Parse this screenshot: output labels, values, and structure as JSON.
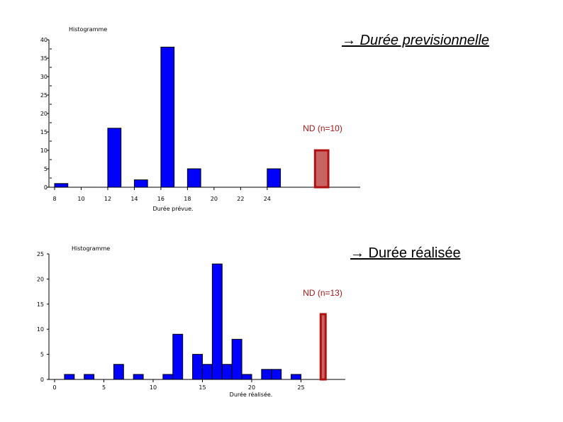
{
  "chart_data": [
    {
      "type": "bar",
      "title": "Histogramme",
      "xlabel": "Durée prévue.",
      "ylabel": "",
      "x_ticks": [
        8,
        10,
        12,
        14,
        16,
        18,
        20,
        22,
        24
      ],
      "y_ticks": [
        0,
        5,
        10,
        15,
        20,
        25,
        30,
        35,
        40
      ],
      "xlim": [
        8,
        31
      ],
      "ylim": [
        0,
        40
      ],
      "grid": false,
      "bars": [
        {
          "x": 8,
          "value": 1
        },
        {
          "x": 12,
          "value": 16
        },
        {
          "x": 14,
          "value": 2
        },
        {
          "x": 16,
          "value": 38
        },
        {
          "x": 18,
          "value": 5
        },
        {
          "x": 24,
          "value": 5
        }
      ],
      "bar_width": 1,
      "nd_bar": {
        "label": "ND (n=10)",
        "value": 10,
        "x": 27.6,
        "width": 1
      },
      "annotation": "→ Durée previsionnelle",
      "annotation_style": "italic-underline",
      "colors": {
        "bars": "#0000ff",
        "nd_fill": "#c86464",
        "nd_stroke": "#b01010"
      }
    },
    {
      "type": "bar",
      "title": "Histogramme",
      "xlabel": "Durée réalisée.",
      "ylabel": "",
      "x_ticks": [
        0,
        5,
        10,
        15,
        20,
        25
      ],
      "y_ticks": [
        0,
        5,
        10,
        15,
        20,
        25
      ],
      "xlim": [
        0,
        29.5
      ],
      "ylim": [
        0,
        25
      ],
      "grid": false,
      "bars": [
        {
          "x": 1,
          "value": 1
        },
        {
          "x": 3,
          "value": 1
        },
        {
          "x": 6,
          "value": 3
        },
        {
          "x": 8,
          "value": 1
        },
        {
          "x": 11,
          "value": 1
        },
        {
          "x": 12,
          "value": 9
        },
        {
          "x": 14,
          "value": 5
        },
        {
          "x": 15,
          "value": 3
        },
        {
          "x": 16,
          "value": 23
        },
        {
          "x": 17,
          "value": 3
        },
        {
          "x": 18,
          "value": 8
        },
        {
          "x": 19,
          "value": 1
        },
        {
          "x": 21,
          "value": 2
        },
        {
          "x": 22,
          "value": 2
        },
        {
          "x": 24,
          "value": 1
        }
      ],
      "bar_width": 1,
      "nd_bar": {
        "label": "ND (n=13)",
        "value": 13,
        "x": 27,
        "width": 0.5
      },
      "annotation": "→ Durée réalisée",
      "annotation_style": "underline",
      "colors": {
        "bars": "#0000ff",
        "nd_fill": "#c86464",
        "nd_stroke": "#b01010"
      }
    }
  ]
}
